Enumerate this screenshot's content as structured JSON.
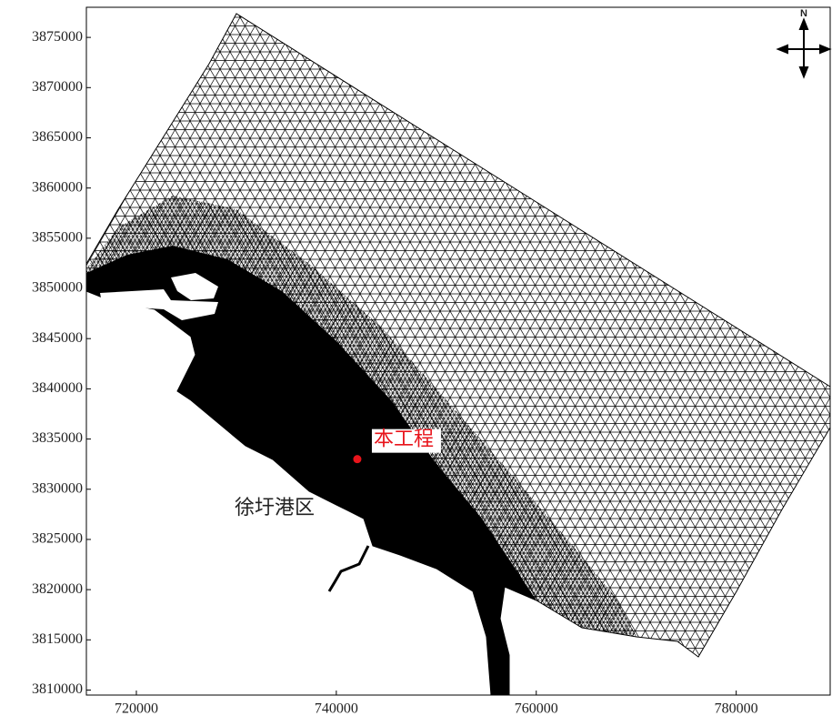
{
  "chart_data": {
    "type": "scatter",
    "xlim": [
      715000,
      789400
    ],
    "ylim": [
      3809500,
      3878000
    ],
    "xticks": [
      720000,
      740000,
      760000,
      780000
    ],
    "yticks": [
      3810000,
      3815000,
      3820000,
      3825000,
      3830000,
      3835000,
      3840000,
      3845000,
      3850000,
      3855000,
      3860000,
      3865000,
      3870000,
      3875000
    ],
    "series": [
      {
        "name": "本工程",
        "color": "#e8141b",
        "x": [
          742100
        ],
        "values": [
          3833000
        ]
      }
    ],
    "annotations": [
      {
        "text": "徐圩港区"
      }
    ],
    "north_label": "N"
  }
}
